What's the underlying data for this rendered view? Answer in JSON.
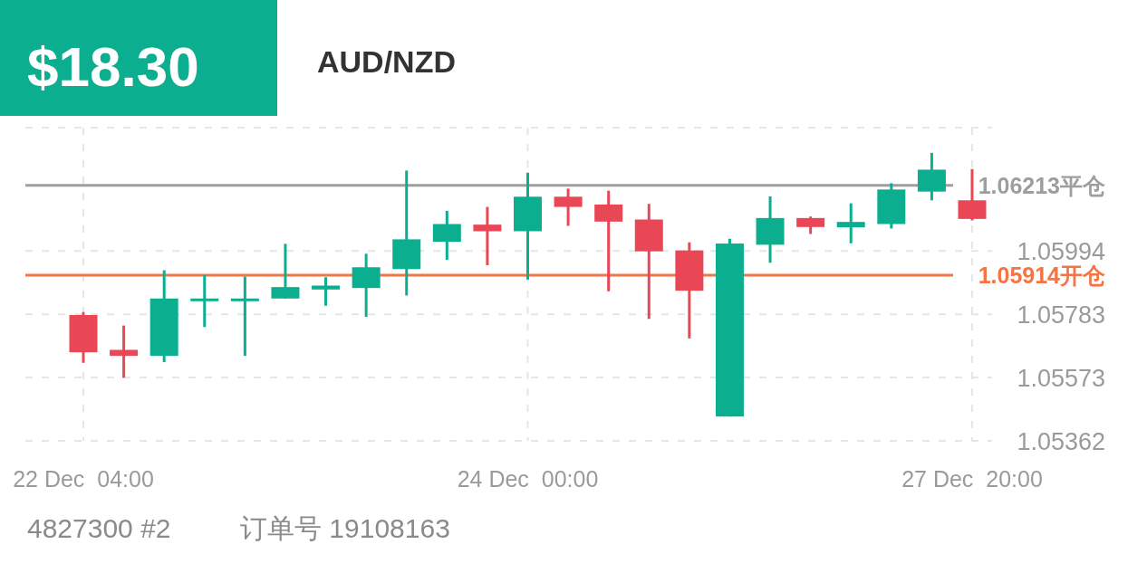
{
  "chart_data": {
    "type": "candlestick",
    "title": "AUD/NZD",
    "subtitle": "$18.30",
    "categories": [
      "22 Dec  04:00",
      null,
      null,
      null,
      null,
      null,
      null,
      null,
      null,
      null,
      null,
      "24 Dec  00:00",
      null,
      null,
      null,
      null,
      null,
      null,
      null,
      null,
      null,
      null,
      "27 Dec  20:00"
    ],
    "ohlc": [
      [
        1.05781,
        1.05791,
        1.05622,
        1.05657
      ],
      [
        1.05665,
        1.05746,
        1.05572,
        1.05645
      ],
      [
        1.05645,
        1.0593,
        1.05624,
        1.05836
      ],
      [
        1.05827,
        1.05914,
        1.05741,
        1.05836
      ],
      [
        1.05827,
        1.05909,
        1.05645,
        1.05836
      ],
      [
        1.05836,
        1.06018,
        1.05836,
        1.05874
      ],
      [
        1.05866,
        1.05907,
        1.05812,
        1.05879
      ],
      [
        1.05871,
        1.05985,
        1.05775,
        1.0594
      ],
      [
        1.05934,
        1.06262,
        1.05846,
        1.06033
      ],
      [
        1.06025,
        1.06128,
        1.05965,
        1.06084
      ],
      [
        1.06082,
        1.06141,
        1.05947,
        1.0606
      ],
      [
        1.0606,
        1.06255,
        1.05899,
        1.06175
      ],
      [
        1.06175,
        1.06202,
        1.06078,
        1.06141
      ],
      [
        1.06149,
        1.06195,
        1.0586,
        1.06092
      ],
      [
        1.06099,
        1.06151,
        1.05768,
        1.05993
      ],
      [
        1.05996,
        1.06023,
        1.05703,
        1.05862
      ],
      [
        1.05443,
        1.06035,
        1.05443,
        1.06019
      ],
      [
        1.06015,
        1.06176,
        1.05955,
        1.06104
      ],
      [
        1.06104,
        1.06109,
        1.06051,
        1.06074
      ],
      [
        1.06073,
        1.06153,
        1.0602,
        1.06091
      ],
      [
        1.06084,
        1.0622,
        1.06069,
        1.06199
      ],
      [
        1.06192,
        1.06321,
        1.06163,
        1.06265
      ],
      [
        1.06163,
        1.06267,
        1.06096,
        1.06101
      ]
    ],
    "colors": [
      "#e94656",
      "#e94656",
      "#0baf8f",
      "#0baf8f",
      "#0baf8f",
      "#0baf8f",
      "#0baf8f",
      "#0baf8f",
      "#0baf8f",
      "#0baf8f",
      "#e94656",
      "#0baf8f",
      "#e94656",
      "#e94656",
      "#e94656",
      "#e94656",
      "#0baf8f",
      "#0baf8f",
      "#e94656",
      "#0baf8f",
      "#0baf8f",
      "#0baf8f",
      "#e94656"
    ],
    "ylim": [
      1.05362,
      1.06405
    ],
    "yticks": [
      1.05362,
      1.05573,
      1.05783,
      1.05994,
      {
        "value": 1.06405,
        "label": null
      }
    ],
    "grid": true,
    "ref_lines": [
      {
        "axis": "y",
        "value": 1.06213,
        "label": "1.06213平仓",
        "color": "#9e9e9e"
      },
      {
        "axis": "y",
        "value": 1.05914,
        "label": "1.05914开仓",
        "color": "#f47445"
      }
    ],
    "annotations": [
      "4827300 #2",
      "订单号 19108163"
    ]
  }
}
